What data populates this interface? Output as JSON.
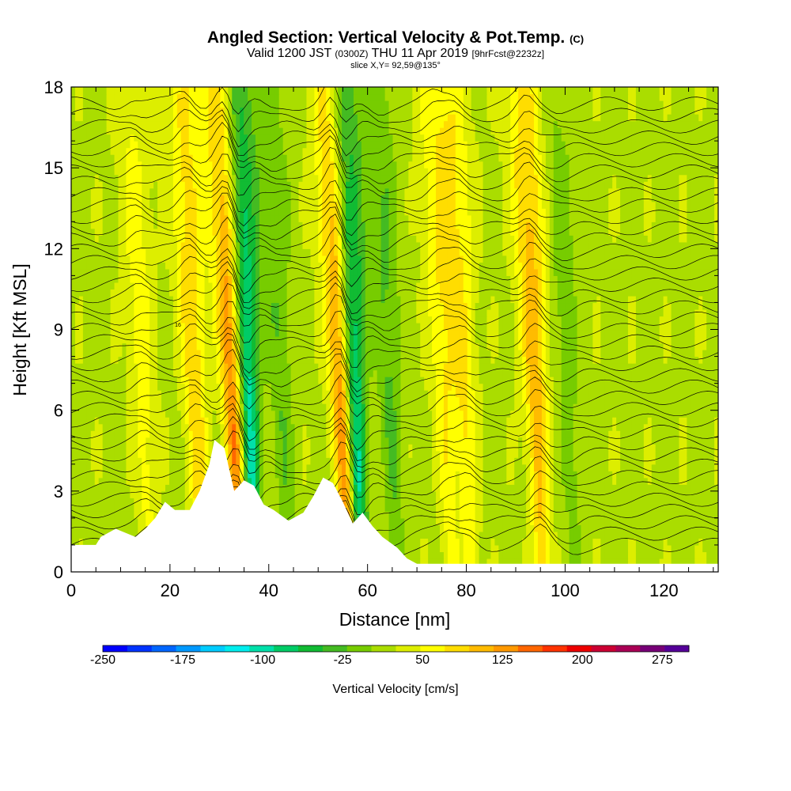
{
  "header": {
    "title": "Angled Section: Vertical Velocity & Pot.Temp.",
    "title_tag": "(C)",
    "subtitle_a": "Valid 1200 JST",
    "subtitle_b": "(0300Z)",
    "subtitle_c": "THU 11 Apr 2019",
    "subtitle_d": "[9hrFcst@2232z]",
    "slice": "slice X,Y= 92,59@135°"
  },
  "chart_data": {
    "type": "heatmap",
    "xlabel": "Distance [nm]",
    "ylabel": "Height [Kft MSL]",
    "xlim": [
      0,
      131
    ],
    "ylim": [
      0,
      18
    ],
    "x_ticks": [
      0,
      20,
      40,
      60,
      80,
      100,
      120
    ],
    "y_ticks": [
      0,
      3,
      6,
      9,
      12,
      15,
      18
    ],
    "colorbar": {
      "title": "Vertical Velocity [cm/s]",
      "range": [
        -250,
        300
      ],
      "tick_labels": [
        "-250",
        "-175",
        "-100",
        "-25",
        "50",
        "125",
        "200",
        "275"
      ],
      "tick_values": [
        -250,
        -175,
        -100,
        -25,
        50,
        125,
        200,
        275
      ],
      "colors": [
        "#0000ff",
        "#0033ff",
        "#0066ff",
        "#0099ff",
        "#00ccff",
        "#00eeee",
        "#00e0aa",
        "#00cc66",
        "#11bb33",
        "#44bb22",
        "#77cc00",
        "#aadd00",
        "#ddee00",
        "#ffff00",
        "#ffdd00",
        "#ffbb00",
        "#ff9900",
        "#ff6600",
        "#ff3300",
        "#ee0000",
        "#cc0033",
        "#aa0055",
        "#770077",
        "#550099"
      ]
    },
    "updrafts": [
      {
        "x": 32.5,
        "w": 150
      },
      {
        "x": 54.5,
        "w": 160
      },
      {
        "x": 93.5,
        "w": 90
      },
      {
        "x": 24.5,
        "w": 70
      },
      {
        "x": 79,
        "w": 55
      },
      {
        "x": 75,
        "w": 50
      },
      {
        "x": 14,
        "w": 40
      }
    ],
    "downdrafts": [
      {
        "x": 35,
        "w": -150
      },
      {
        "x": 56.5,
        "w": -160
      },
      {
        "x": 42,
        "w": -40
      },
      {
        "x": 64,
        "w": -45
      },
      {
        "x": 100,
        "w": -30
      }
    ],
    "terrain": [
      [
        0,
        1.0
      ],
      [
        5,
        1.0
      ],
      [
        6,
        1.3
      ],
      [
        9,
        1.6
      ],
      [
        13,
        1.3
      ],
      [
        15,
        1.6
      ],
      [
        17,
        2.0
      ],
      [
        19,
        2.6
      ],
      [
        21,
        2.3
      ],
      [
        24,
        2.3
      ],
      [
        26,
        3.0
      ],
      [
        28,
        4.0
      ],
      [
        29,
        4.9
      ],
      [
        31,
        4.6
      ],
      [
        33,
        3.0
      ],
      [
        35,
        3.4
      ],
      [
        37,
        3.2
      ],
      [
        39,
        2.5
      ],
      [
        41,
        2.3
      ],
      [
        44,
        1.9
      ],
      [
        47,
        2.2
      ],
      [
        49,
        2.8
      ],
      [
        51,
        3.5
      ],
      [
        53,
        3.3
      ],
      [
        55,
        2.6
      ],
      [
        57,
        1.8
      ],
      [
        59,
        2.2
      ],
      [
        61,
        1.7
      ],
      [
        63,
        1.3
      ],
      [
        66,
        0.9
      ],
      [
        68,
        0.5
      ],
      [
        70,
        0.3
      ],
      [
        72,
        0.3
      ],
      [
        131,
        0.3
      ]
    ],
    "theta_label": "16"
  }
}
